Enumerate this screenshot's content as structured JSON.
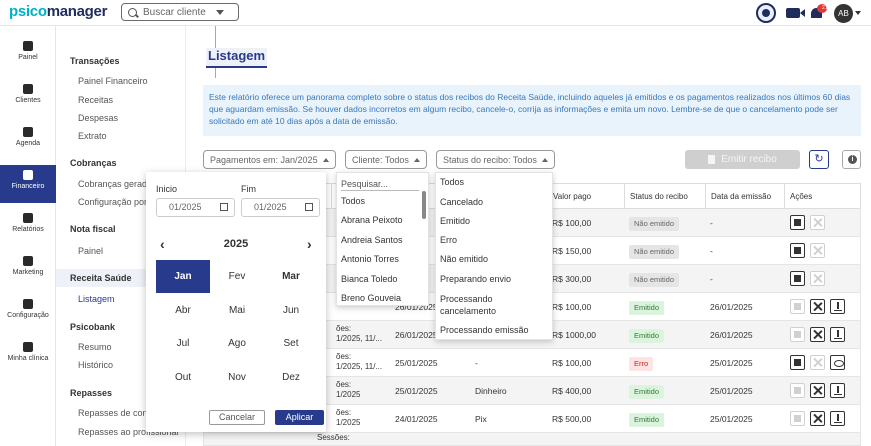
{
  "brand": {
    "part1": "psico",
    "part2": "manager"
  },
  "search": {
    "placeholder": "Buscar cliente"
  },
  "user": {
    "initials": "AB",
    "notifications": "21"
  },
  "rail": [
    {
      "label": "Painel",
      "icon": "dashboard-icon"
    },
    {
      "label": "Clientes",
      "icon": "users-icon"
    },
    {
      "label": "Agenda",
      "icon": "calendar-icon"
    },
    {
      "label": "Financeiro",
      "icon": "money-icon"
    },
    {
      "label": "Relatórios",
      "icon": "report-icon"
    },
    {
      "label": "Marketing",
      "icon": "megaphone-icon"
    },
    {
      "label": "Configuração",
      "icon": "gear-icon"
    },
    {
      "label": "Minha clínica",
      "icon": "building-icon"
    }
  ],
  "submenu": {
    "transacoes": {
      "head": "Transações",
      "items": [
        "Painel Financeiro",
        "Receitas",
        "Despesas",
        "Extrato"
      ]
    },
    "cobrancas": {
      "head": "Cobranças",
      "items": [
        "Cobranças geradas",
        "Configuração por cliente"
      ]
    },
    "nota": {
      "head": "Nota fiscal",
      "items": [
        "Painel"
      ]
    },
    "receita": {
      "head": "Receita Saúde",
      "items": [
        "Listagem"
      ]
    },
    "psicobank": {
      "head": "Psicobank",
      "items": [
        "Resumo",
        "Histórico"
      ]
    },
    "repasses": {
      "head": "Repasses",
      "items": [
        "Repasses de consulta",
        "Repasses ao profissional"
      ]
    }
  },
  "page": {
    "title": "Listagem",
    "info": "Este relatório oferece um panorama completo sobre o status dos recibos do Receita Saúde, incluindo aqueles já emitidos e os pagamentos realizados nos últimos 60 dias que aguardam emissão. Se houver dados incorretos em algum recibo, cancele-o, corrija as informações e emita um novo. Lembre-se de que o cancelamento pode ser solicitado em até 10 dias após a data de emissão."
  },
  "filters": {
    "pagamentos": "Pagamentos em: Jan/2025",
    "cliente": "Cliente: Todos",
    "status": "Status do recibo: Todos",
    "emitir": "Emitir recibo"
  },
  "table": {
    "headers": [
      "Valor pago",
      "Status do recibo",
      "Data da emissão",
      "Ações"
    ],
    "rows": [
      {
        "c1": "",
        "c2": "",
        "c3": "",
        "valor": "R$ 100,00",
        "status": "Não emitido",
        "kind": "grey",
        "data": "-"
      },
      {
        "c1": "",
        "c2": "",
        "c3": "",
        "valor": "R$ 150,00",
        "status": "Não emitido",
        "kind": "grey",
        "data": "-"
      },
      {
        "c1": "",
        "c2": "",
        "c3": "",
        "valor": "R$ 300,00",
        "status": "Não emitido",
        "kind": "grey",
        "data": "-"
      },
      {
        "c1": "",
        "c2": "26/01/2025",
        "c3": "",
        "valor": "R$ 100,00",
        "status": "Emitido",
        "kind": "green",
        "data": "26/01/2025"
      },
      {
        "c1a": "ões:",
        "c1b": "1/2025, 11/...",
        "c2": "26/01/2025",
        "c3": "",
        "valor": "R$ 1000,00",
        "status": "Emitido",
        "kind": "green",
        "data": "26/01/2025"
      },
      {
        "c1a": "ões:",
        "c1b": "1/2025, 11/...",
        "c2": "25/01/2025",
        "c3": "-",
        "valor": "R$ 100,00",
        "status": "Erro",
        "kind": "red",
        "data": "25/01/2025"
      },
      {
        "c1a": "ões:",
        "c1b": "1/2025",
        "c2": "25/01/2025",
        "c3": "Dinheiro",
        "valor": "R$ 400,00",
        "status": "Emitido",
        "kind": "green",
        "data": "25/01/2025"
      },
      {
        "c1a": "ões:",
        "c1b": "1/2025",
        "c2": "24/01/2025",
        "c3": "Pix",
        "valor": "R$ 500,00",
        "status": "Emitido",
        "kind": "green",
        "data": "25/01/2025"
      }
    ],
    "partial_heads": {
      "a": "ório",
      "b": "to"
    },
    "partial_top": {
      "a": "1/2",
      "b": "1/2",
      "c": "1/2"
    },
    "bottom_cut": "Sessões:"
  },
  "datepicker": {
    "inicio_label": "Inicio",
    "fim_label": "Fim",
    "inicio_value": "01/2025",
    "fim_value": "01/2025",
    "year": "2025",
    "months": [
      "Jan",
      "Fev",
      "Mar",
      "Abr",
      "Mai",
      "Jun",
      "Jul",
      "Ago",
      "Set",
      "Out",
      "Nov",
      "Dez"
    ],
    "cancel": "Cancelar",
    "apply": "Aplicar"
  },
  "cliente_dropdown": {
    "search": "Pesquisar...",
    "items": [
      "Todos",
      "Abrana Peixoto",
      "Andreia Santos",
      "Antonio Torres",
      "Bianca Toledo",
      "Breno Gouveia"
    ]
  },
  "status_dropdown": {
    "items": [
      "Todos",
      "Cancelado",
      "Emitido",
      "Erro",
      "Não emitido",
      "Preparando envio",
      "Processando",
      "cancelamento",
      "Processando emissão"
    ]
  },
  "colors": {
    "primary": "#283a8c",
    "accent": "#00b0c8"
  }
}
